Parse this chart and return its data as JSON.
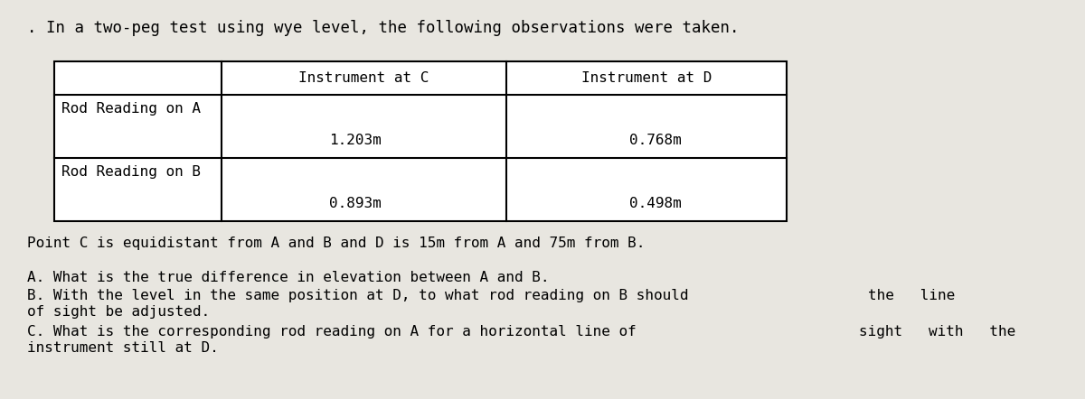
{
  "title_text": ". In a two-peg test using wye level, the following observations were taken.",
  "col_headers": [
    "",
    "Instrument at C",
    "Instrument at D"
  ],
  "row1_label": "Rod Reading on A",
  "row2_label": "Rod Reading on B",
  "cell_data": [
    [
      "1.203m",
      "0.768m"
    ],
    [
      "0.893m",
      "0.498m"
    ]
  ],
  "point_text": "Point C is equidistant from A and B and D is 15m from A and 75m from B.",
  "question_A": "A. What is the true difference in elevation between A and B.",
  "question_B1": "B. With the level in the same position at D, to what rod reading on B should",
  "question_B2": "the   line",
  "question_B3": "of sight be adjusted.",
  "question_C1": "C. What is the corresponding rod reading on A for a horizontal line of",
  "question_C2": "sight   with   the",
  "question_C3": "instrument still at D.",
  "bg_color": "#e8e6e0",
  "table_bg": "#ffffff",
  "font_family": "monospace",
  "title_fontsize": 12.5,
  "body_fontsize": 11.5,
  "table_fontsize": 11.5
}
